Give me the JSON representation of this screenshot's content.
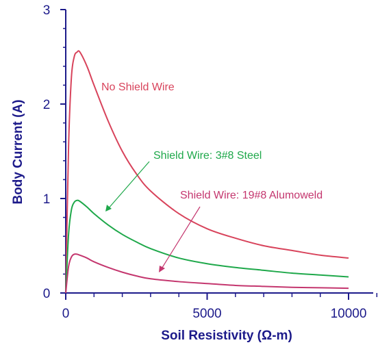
{
  "chart_data": {
    "type": "line",
    "xlabel": "Soil Resistivity (Ω-m)",
    "ylabel": "Body Current (A)",
    "xlim": [
      0,
      10000
    ],
    "ylim": [
      0,
      3
    ],
    "x_ticks": [
      "0",
      "5000",
      "10000"
    ],
    "y_ticks": [
      "0",
      "1",
      "2",
      "3"
    ],
    "grid": false,
    "x": [
      0,
      100,
      200,
      300,
      400,
      500,
      750,
      1000,
      1500,
      2000,
      2500,
      3000,
      4000,
      5000,
      6000,
      7000,
      8000,
      9000,
      10000
    ],
    "series": [
      {
        "name": "No Shield Wire",
        "color": "#d8435b",
        "values": [
          0,
          1.55,
          2.28,
          2.5,
          2.55,
          2.55,
          2.4,
          2.2,
          1.82,
          1.5,
          1.26,
          1.08,
          0.84,
          0.68,
          0.58,
          0.5,
          0.45,
          0.4,
          0.37
        ]
      },
      {
        "name": "Shield Wire: 3#8 Steel",
        "color": "#1ea84a",
        "values": [
          0,
          0.62,
          0.88,
          0.96,
          0.98,
          0.97,
          0.91,
          0.84,
          0.72,
          0.62,
          0.54,
          0.47,
          0.37,
          0.31,
          0.27,
          0.24,
          0.21,
          0.19,
          0.17
        ]
      },
      {
        "name": "Shield Wire: 19#8 Alumoweld",
        "color": "#c4366e",
        "values": [
          0,
          0.28,
          0.38,
          0.41,
          0.41,
          0.4,
          0.37,
          0.33,
          0.27,
          0.22,
          0.18,
          0.15,
          0.12,
          0.1,
          0.08,
          0.07,
          0.06,
          0.055,
          0.05
        ]
      }
    ],
    "annotations": [
      {
        "text": "No Shield Wire",
        "color": "#d8435b"
      },
      {
        "text": "Shield Wire: 3#8 Steel",
        "color": "#1ea84a"
      },
      {
        "text": "Shield Wire: 19#8 Alumoweld",
        "color": "#c4366e"
      }
    ],
    "axis_color": "#1c1a8a"
  }
}
